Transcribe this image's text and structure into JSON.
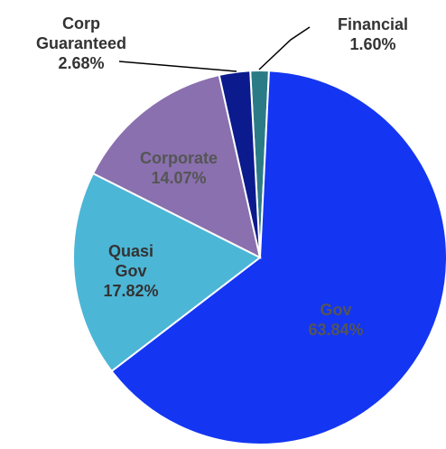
{
  "chart_data": {
    "type": "pie",
    "categories": [
      "Financial",
      "Gov",
      "Quasi\nGov",
      "Corporate",
      "Corp\nGuaranteed"
    ],
    "values": [
      1.6,
      63.84,
      17.82,
      14.07,
      2.68
    ],
    "value_labels": [
      "1.60%",
      "63.84%",
      "17.82%",
      "14.07%",
      "2.68%"
    ],
    "colors": [
      "#2b7b87",
      "#1436f2",
      "#4cb6d6",
      "#8a70ae",
      "#0b1a8c"
    ]
  }
}
